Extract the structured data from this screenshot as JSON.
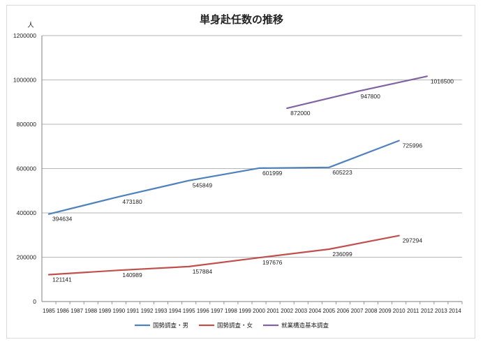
{
  "chart_data": {
    "type": "line",
    "title": "単身赴任数の推移",
    "ylabel": "人",
    "xlabel": "",
    "ylim": [
      0,
      1200000
    ],
    "yticks": [
      0,
      200000,
      400000,
      600000,
      800000,
      1000000,
      1200000
    ],
    "x": [
      1985,
      1986,
      1987,
      1988,
      1989,
      1990,
      1991,
      1992,
      1993,
      1994,
      1995,
      1996,
      1997,
      1998,
      1999,
      2000,
      2001,
      2002,
      2003,
      2004,
      2005,
      2006,
      2007,
      2008,
      2009,
      2010,
      2011,
      2012,
      2013,
      2014
    ],
    "grid": "horizontal",
    "legend_position": "bottom",
    "series": [
      {
        "name": "国勢調査・男",
        "color": "#4f81bd",
        "points": [
          [
            1985,
            394634
          ],
          [
            1990,
            473180
          ],
          [
            1995,
            545849
          ],
          [
            2000,
            601999
          ],
          [
            2005,
            605223
          ],
          [
            2010,
            725996
          ]
        ],
        "labels": [
          "394634",
          "473180",
          "545849",
          "601999",
          "605223",
          "725996"
        ]
      },
      {
        "name": "国勢調査・女",
        "color": "#c0504d",
        "points": [
          [
            1985,
            121141
          ],
          [
            1990,
            140989
          ],
          [
            1995,
            157884
          ],
          [
            2000,
            197676
          ],
          [
            2005,
            236099
          ],
          [
            2010,
            297294
          ]
        ],
        "labels": [
          "121141",
          "140989",
          "157884",
          "197676",
          "236099",
          "297294"
        ]
      },
      {
        "name": "就業構造基本調査",
        "color": "#8064a2",
        "points": [
          [
            2002,
            872000
          ],
          [
            2007,
            947800
          ],
          [
            2012,
            1016500
          ]
        ],
        "labels": [
          "872000",
          "947800",
          "1016500"
        ]
      }
    ]
  }
}
